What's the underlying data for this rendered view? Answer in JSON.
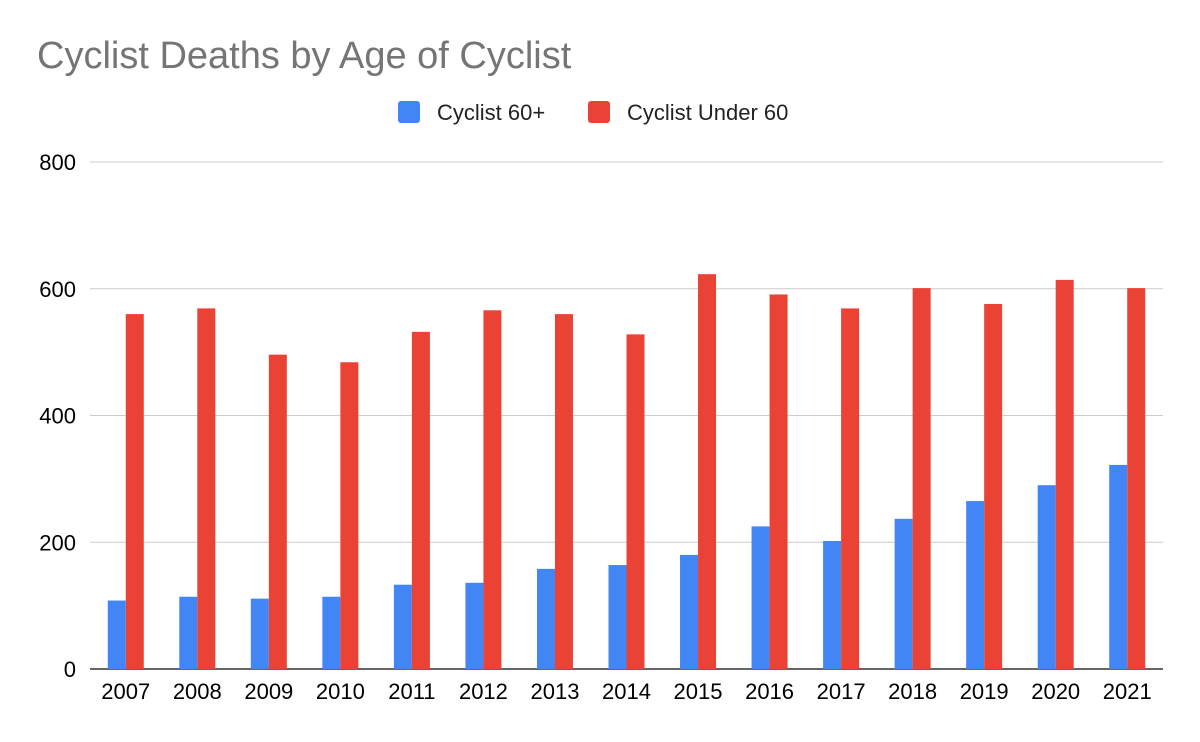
{
  "chart_data": {
    "type": "bar",
    "title": "Cyclist Deaths by Age of Cyclist",
    "xlabel": "",
    "ylabel": "",
    "categories": [
      "2007",
      "2008",
      "2009",
      "2010",
      "2011",
      "2012",
      "2013",
      "2014",
      "2015",
      "2016",
      "2017",
      "2018",
      "2019",
      "2020",
      "2021"
    ],
    "series": [
      {
        "name": "Cyclist 60+",
        "color": "#4285f4",
        "values": [
          108,
          114,
          111,
          114,
          133,
          136,
          158,
          164,
          180,
          225,
          202,
          237,
          265,
          290,
          322
        ]
      },
      {
        "name": "Cyclist Under 60",
        "color": "#ea4335",
        "values": [
          560,
          569,
          496,
          484,
          532,
          566,
          560,
          528,
          623,
          591,
          569,
          601,
          576,
          614,
          601
        ]
      }
    ],
    "ylim": [
      0,
      800
    ],
    "yticks": [
      0,
      200,
      400,
      600,
      800
    ],
    "grid": true,
    "legend_position": "top-center"
  }
}
